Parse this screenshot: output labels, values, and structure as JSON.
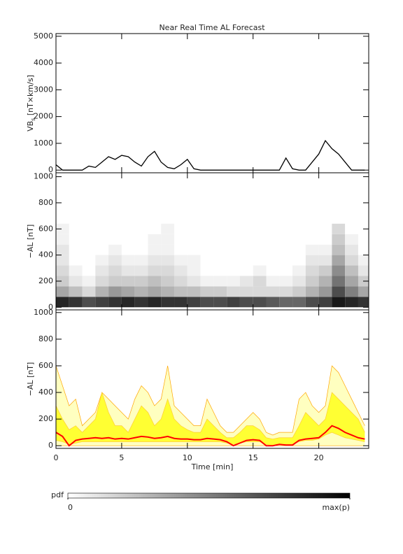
{
  "chart_data": [
    {
      "type": "line",
      "title": "Near Real Time AL Forecast",
      "ylabel": "VB",
      "ylabel_sub": "s",
      "ylabel_rest": " [nT×km/s]",
      "x": [
        0,
        0.5,
        1,
        1.5,
        2,
        2.5,
        3,
        3.5,
        4,
        4.5,
        5,
        5.5,
        6,
        6.5,
        7,
        7.5,
        8,
        8.5,
        9,
        9.5,
        10,
        10.5,
        11,
        11.5,
        12,
        12.5,
        13,
        13.5,
        14,
        14.5,
        15,
        15.5,
        16,
        16.5,
        17,
        17.5,
        18,
        18.5,
        19,
        19.5,
        20,
        20.5,
        21,
        21.5,
        22,
        22.5,
        23,
        23.5
      ],
      "series": [
        {
          "color": "#000000",
          "values": [
            200,
            0,
            0,
            0,
            0,
            150,
            100,
            300,
            500,
            400,
            550,
            500,
            300,
            150,
            500,
            700,
            300,
            100,
            50,
            200,
            400,
            50,
            0,
            0,
            0,
            0,
            0,
            0,
            0,
            0,
            0,
            0,
            0,
            0,
            0,
            450,
            50,
            0,
            0,
            300,
            600,
            1100,
            800,
            600,
            300,
            0,
            0,
            0
          ]
        }
      ],
      "xlim": [
        0,
        23.8
      ],
      "xticks": [
        0,
        5,
        10,
        15,
        20
      ],
      "ylim": [
        -100,
        5100
      ],
      "yticks": [
        0,
        1000,
        2000,
        3000,
        4000,
        5000
      ]
    },
    {
      "type": "heatmap",
      "ylabel": "−AL [nT]",
      "xbins": [
        0,
        1,
        2,
        3,
        4,
        5,
        6,
        7,
        8,
        9,
        10,
        11,
        12,
        13,
        14,
        15,
        16,
        17,
        18,
        19,
        20,
        21,
        22,
        23,
        24
      ],
      "ybins": [
        0,
        80,
        160,
        240,
        320,
        400,
        480,
        560,
        640
      ],
      "z": [
        [
          0.85,
          0.8,
          0.7,
          0.75,
          0.8,
          0.85,
          0.8,
          0.85,
          0.8,
          0.8,
          0.75,
          0.7,
          0.7,
          0.75,
          0.7,
          0.7,
          0.65,
          0.6,
          0.6,
          0.7,
          0.75,
          0.9,
          0.85,
          0.8
        ],
        [
          0.35,
          0.25,
          0.15,
          0.3,
          0.4,
          0.35,
          0.3,
          0.35,
          0.3,
          0.25,
          0.25,
          0.2,
          0.2,
          0.15,
          0.15,
          0.15,
          0.15,
          0.15,
          0.2,
          0.3,
          0.4,
          0.7,
          0.5,
          0.35
        ],
        [
          0.2,
          0.1,
          0.05,
          0.15,
          0.2,
          0.2,
          0.2,
          0.25,
          0.2,
          0.15,
          0.1,
          0.05,
          0.05,
          0.05,
          0.1,
          0.15,
          0.05,
          0.05,
          0.1,
          0.2,
          0.3,
          0.55,
          0.35,
          0.2
        ],
        [
          0.15,
          0.05,
          0,
          0.1,
          0.15,
          0.1,
          0.1,
          0.15,
          0.15,
          0.1,
          0.05,
          0,
          0,
          0,
          0,
          0.05,
          0,
          0,
          0.05,
          0.15,
          0.2,
          0.45,
          0.25,
          0.1
        ],
        [
          0.1,
          0,
          0,
          0.05,
          0.1,
          0.05,
          0.05,
          0.1,
          0.1,
          0.05,
          0.05,
          0,
          0,
          0,
          0,
          0,
          0,
          0,
          0,
          0.1,
          0.1,
          0.35,
          0.15,
          0.05
        ],
        [
          0.1,
          0,
          0,
          0,
          0.05,
          0,
          0,
          0.05,
          0.05,
          0,
          0,
          0,
          0,
          0,
          0,
          0,
          0,
          0,
          0,
          0.05,
          0.05,
          0.25,
          0.1,
          0
        ],
        [
          0.05,
          0,
          0,
          0,
          0,
          0,
          0,
          0.05,
          0.05,
          0,
          0,
          0,
          0,
          0,
          0,
          0,
          0,
          0,
          0,
          0,
          0,
          0.2,
          0.05,
          0
        ],
        [
          0.05,
          0,
          0,
          0,
          0,
          0,
          0,
          0,
          0.05,
          0,
          0,
          0,
          0,
          0,
          0,
          0,
          0,
          0,
          0,
          0,
          0,
          0.15,
          0,
          0
        ]
      ],
      "xlim": [
        0,
        23.8
      ],
      "xticks": [
        0,
        5,
        10,
        15,
        20
      ],
      "ylim": [
        -20,
        1030
      ],
      "yticks": [
        0,
        200,
        400,
        600,
        800,
        1000
      ],
      "colorbar": {
        "label": "pdf",
        "colors": [
          "#ffffff",
          "#000000"
        ],
        "ticks": [
          0,
          {
            "value": 1,
            "label": "max(p)"
          }
        ]
      }
    },
    {
      "type": "band",
      "ylabel": "−AL [nT]",
      "xlabel": "Time [min]",
      "x": [
        0,
        0.5,
        1,
        1.5,
        2,
        2.5,
        3,
        3.5,
        4,
        4.5,
        5,
        5.5,
        6,
        6.5,
        7,
        7.5,
        8,
        8.5,
        9,
        9.5,
        10,
        10.5,
        11,
        11.5,
        12,
        12.5,
        13,
        13.5,
        14,
        14.5,
        15,
        15.5,
        16,
        16.5,
        17,
        17.5,
        18,
        18.5,
        19,
        19.5,
        20,
        20.5,
        21,
        21.5,
        22,
        22.5,
        23,
        23.5
      ],
      "bands": [
        {
          "color": "#ffffc0",
          "edge_color": "#ffa500",
          "upper": [
            600,
            450,
            300,
            350,
            150,
            200,
            250,
            400,
            350,
            300,
            250,
            200,
            350,
            450,
            400,
            300,
            350,
            600,
            300,
            250,
            200,
            150,
            150,
            350,
            250,
            150,
            100,
            100,
            150,
            200,
            250,
            200,
            100,
            80,
            100,
            100,
            100,
            350,
            400,
            300,
            250,
            300,
            600,
            550,
            450,
            350,
            250,
            150
          ],
          "lower": [
            0,
            0,
            0,
            0,
            0,
            0,
            0,
            0,
            0,
            0,
            0,
            0,
            0,
            0,
            0,
            0,
            0,
            0,
            0,
            0,
            0,
            0,
            0,
            0,
            0,
            0,
            0,
            0,
            0,
            0,
            0,
            0,
            0,
            0,
            0,
            0,
            0,
            0,
            0,
            0,
            0,
            0,
            0,
            0,
            0,
            0,
            0,
            0
          ]
        },
        {
          "color": "#ffff33",
          "edge_color": "#ffcc33",
          "upper": [
            300,
            200,
            120,
            150,
            100,
            150,
            200,
            400,
            250,
            150,
            150,
            100,
            200,
            300,
            250,
            150,
            200,
            350,
            200,
            150,
            120,
            100,
            100,
            200,
            150,
            100,
            60,
            60,
            100,
            150,
            150,
            120,
            60,
            50,
            60,
            60,
            60,
            150,
            250,
            200,
            150,
            200,
            400,
            350,
            300,
            250,
            200,
            100
          ],
          "lower": [
            40,
            30,
            10,
            20,
            30,
            30,
            30,
            30,
            30,
            30,
            30,
            30,
            30,
            30,
            30,
            30,
            30,
            30,
            30,
            30,
            30,
            30,
            30,
            30,
            30,
            30,
            20,
            10,
            20,
            30,
            30,
            30,
            10,
            0,
            10,
            10,
            10,
            30,
            40,
            40,
            50,
            80,
            100,
            80,
            60,
            50,
            40,
            30
          ]
        }
      ],
      "series": [
        {
          "color": "#ff0000",
          "values": [
            100,
            70,
            0,
            40,
            50,
            55,
            60,
            55,
            60,
            50,
            55,
            50,
            60,
            70,
            65,
            55,
            60,
            70,
            55,
            50,
            50,
            45,
            45,
            55,
            50,
            45,
            30,
            0,
            20,
            40,
            45,
            40,
            0,
            0,
            10,
            5,
            5,
            40,
            50,
            55,
            60,
            100,
            150,
            130,
            100,
            80,
            60,
            50
          ]
        }
      ],
      "xlim": [
        0,
        23.8
      ],
      "xticks": [
        0,
        5,
        10,
        15,
        20
      ],
      "ylim": [
        -20,
        1020
      ],
      "yticks": [
        0,
        200,
        400,
        600,
        800,
        1000
      ]
    }
  ]
}
